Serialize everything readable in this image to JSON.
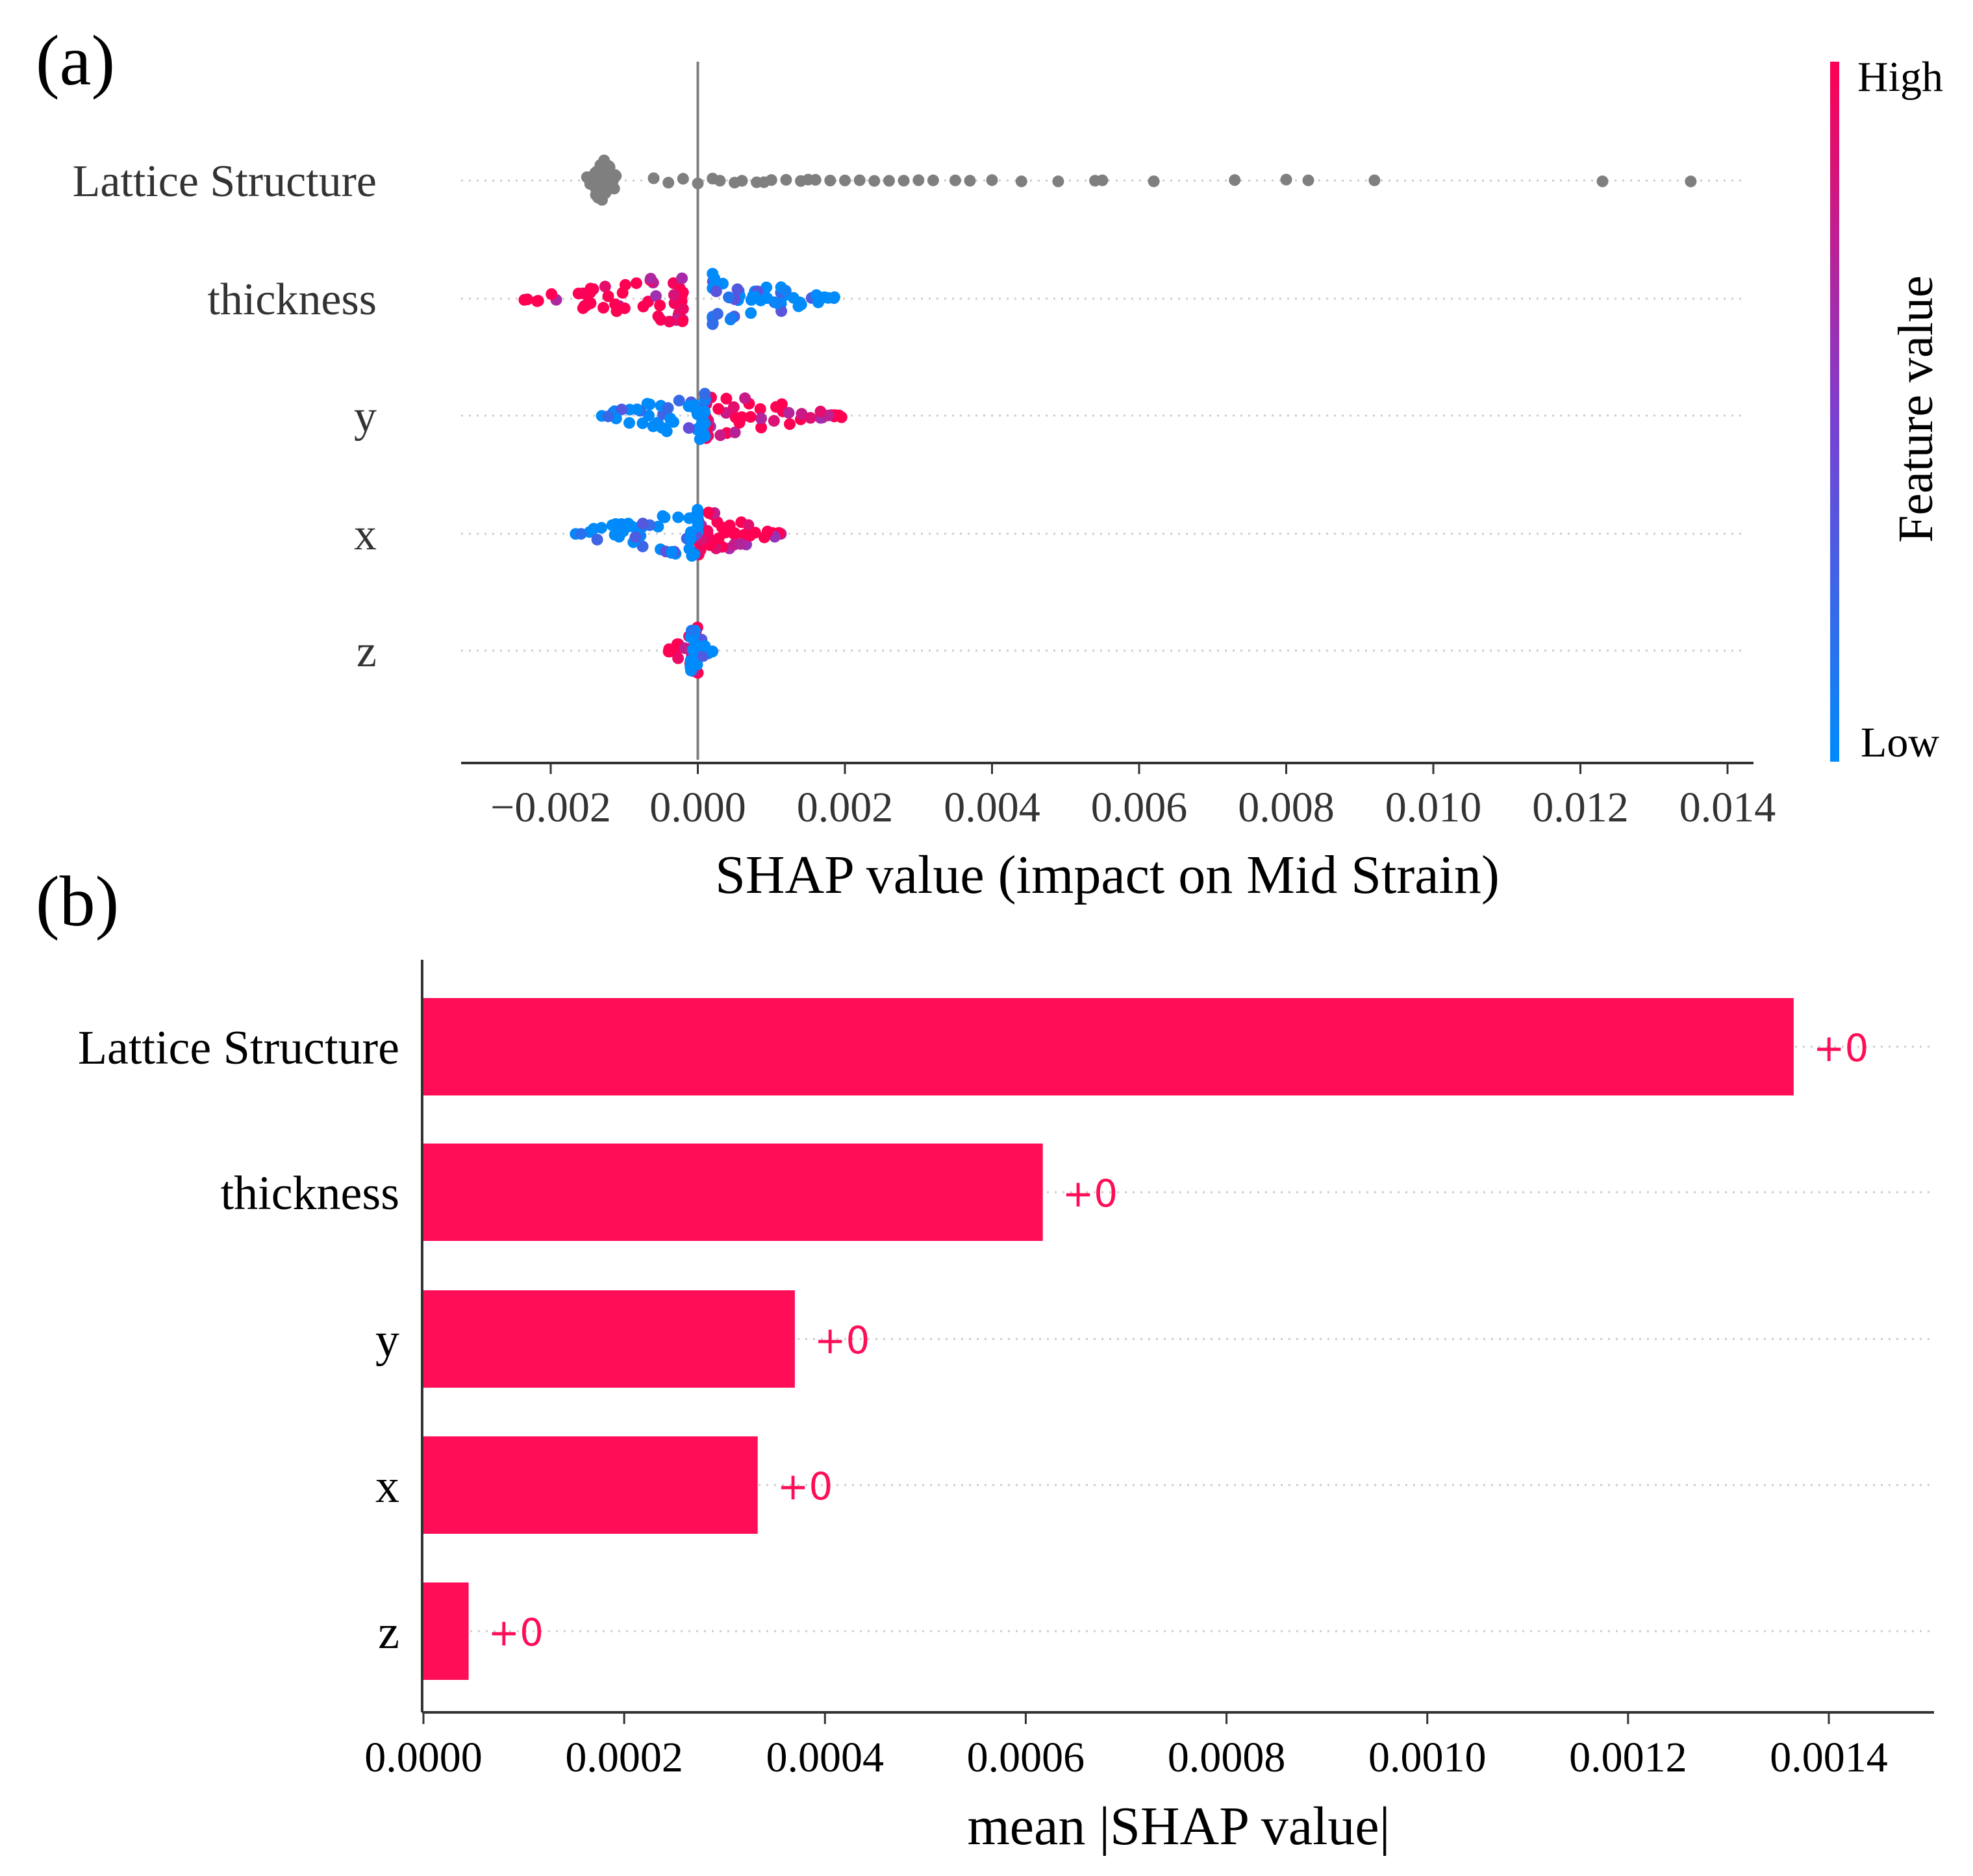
{
  "colors": {
    "high": "#ff0052",
    "low": "#008bfb",
    "mid": "#7d3fd0",
    "grey": "#7f7f7f",
    "axis": "#333333",
    "bar": "#ff0d57"
  },
  "chart_data": [
    {
      "panel_label": "(a)",
      "type": "scatter",
      "subtype": "shap-beeswarm",
      "xlabel": "SHAP value (impact on Mid Strain)",
      "xlim": [
        -0.0032,
        0.0143
      ],
      "xticks": [
        "−0.002",
        "0.000",
        "0.002",
        "0.004",
        "0.006",
        "0.008",
        "0.010",
        "0.012",
        "0.014"
      ],
      "xtick_values": [
        -0.002,
        0.0,
        0.002,
        0.004,
        0.006,
        0.008,
        0.01,
        0.012,
        0.014
      ],
      "features": [
        "Lattice Structure",
        "thickness",
        "y",
        "x",
        "z"
      ],
      "colorbar": {
        "label": "Feature value",
        "high": "High",
        "low": "Low"
      },
      "series": [
        {
          "name": "Lattice Structure",
          "color_mode": "grey",
          "cluster": {
            "center": -0.0013,
            "spread": 0.00025,
            "n": 60
          },
          "outliers": [
            -0.0006,
            -0.0004,
            -0.0002,
            0.0,
            0.0002,
            0.0003,
            0.0005,
            0.0006,
            0.0008,
            0.0009,
            0.001,
            0.0012,
            0.0014,
            0.0015,
            0.0016,
            0.0018,
            0.002,
            0.0022,
            0.0024,
            0.0026,
            0.0028,
            0.003,
            0.0032,
            0.0035,
            0.0037,
            0.004,
            0.0044,
            0.0049,
            0.0054,
            0.0055,
            0.0062,
            0.0073,
            0.008,
            0.0083,
            0.0092,
            0.0123,
            0.0135
          ]
        },
        {
          "name": "thickness",
          "color_mode": "split",
          "high_range": [
            -0.0024,
            -0.0002
          ],
          "low_range": [
            0.0002,
            0.002
          ],
          "n": 110
        },
        {
          "name": "y",
          "color_mode": "split",
          "high_range": [
            0.0001,
            0.002
          ],
          "low_range": [
            -0.0014,
            0.0001
          ],
          "n": 100
        },
        {
          "name": "x",
          "color_mode": "split",
          "high_range": [
            0.0,
            0.0012
          ],
          "low_range": [
            -0.0018,
            0.0
          ],
          "n": 100
        },
        {
          "name": "z",
          "color_mode": "split",
          "high_range": [
            -0.0004,
            0.0
          ],
          "low_range": [
            -0.0001,
            0.0002
          ],
          "n": 50
        }
      ]
    },
    {
      "panel_label": "(b)",
      "type": "bar",
      "orientation": "horizontal",
      "xlabel": "mean |SHAP value|",
      "xlim": [
        0.0,
        0.0015
      ],
      "xticks": [
        "0.0000",
        "0.0002",
        "0.0004",
        "0.0006",
        "0.0008",
        "0.0010",
        "0.0012",
        "0.0014"
      ],
      "xtick_values": [
        0.0,
        0.0002,
        0.0004,
        0.0006,
        0.0008,
        0.001,
        0.0012,
        0.0014
      ],
      "categories": [
        "Lattice Structure",
        "thickness",
        "y",
        "x",
        "z"
      ],
      "values": [
        0.001365,
        0.000617,
        0.00037,
        0.000333,
        4.5e-05
      ],
      "data_labels": [
        "+0",
        "+0",
        "+0",
        "+0",
        "+0"
      ]
    }
  ]
}
